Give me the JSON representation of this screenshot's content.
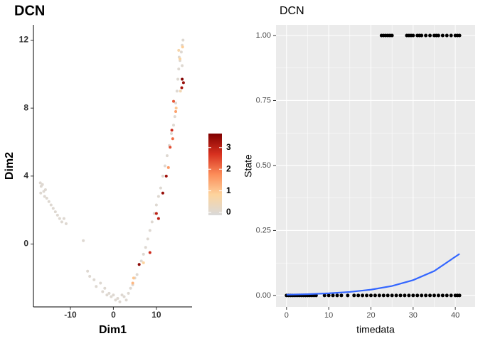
{
  "chart_data": [
    {
      "type": "scatter",
      "theme": "classic",
      "title": "DCN",
      "xlabel": "Dim1",
      "ylabel": "Dim2",
      "xlim": [
        -18.6,
        18.3
      ],
      "ylim": [
        -3.7,
        12.9
      ],
      "xticks": [
        -10,
        0,
        10
      ],
      "yticks": [
        0,
        4,
        8,
        12
      ],
      "colormap": [
        "#d9d9d9",
        "#fdd49e",
        "#fc8d59",
        "#d7301f",
        "#7f0000"
      ],
      "colorlim": [
        -0.13,
        3.65
      ],
      "colorticks": [
        0,
        1,
        2,
        3
      ],
      "points": {
        "x": [
          -17,
          -16.8,
          -16.5,
          -16.9,
          -16.2,
          -16,
          -15.5,
          -15.8,
          -15,
          -14.5,
          -14,
          -13.5,
          -13,
          -12.5,
          -12,
          -11.5,
          -11,
          -7,
          -6,
          -5.5,
          -4.5,
          -4,
          -3,
          -2.5,
          -2,
          -1.5,
          -1,
          -0.5,
          0,
          0.5,
          1,
          1.5,
          2,
          2.5,
          3,
          3.5,
          4,
          4.5,
          5,
          5.5,
          6,
          6.5,
          7,
          7.5,
          8,
          8.5,
          9,
          9.5,
          10,
          10.5,
          11,
          11.5,
          12,
          12.5,
          13,
          13.5,
          14,
          14.3,
          14.5,
          14.8,
          15,
          15.2,
          15.5,
          15.8,
          16,
          16.2,
          15.3,
          16,
          4.5,
          6,
          10,
          14,
          14.5,
          13.6,
          13.2,
          12.8,
          12.3,
          13.8,
          14.6,
          16,
          16.3,
          15.9,
          15.5,
          15.2,
          16.1,
          15.6,
          11.5,
          10.5,
          8.5,
          7,
          4.7
        ],
        "y": [
          3.6,
          3.4,
          3.5,
          3.0,
          3.1,
          2.8,
          2.7,
          3.2,
          2.5,
          2.3,
          2.1,
          1.9,
          1.7,
          1.5,
          1.3,
          1.5,
          1.2,
          0.2,
          -1.6,
          -1.9,
          -2.1,
          -2.5,
          -2.3,
          -2.8,
          -2.6,
          -3.0,
          -2.9,
          -3.1,
          -3.0,
          -3.3,
          -3.2,
          -3.4,
          -3.0,
          -3.1,
          -3.3,
          -2.9,
          -2.6,
          -2.4,
          -2.0,
          -1.8,
          -1.2,
          -1.0,
          -0.6,
          -0.2,
          0.3,
          0.8,
          1.3,
          1.8,
          2.3,
          2.8,
          3.3,
          4.0,
          4.6,
          5.2,
          5.8,
          6.5,
          7.0,
          7.5,
          8.3,
          9.0,
          9.7,
          10.3,
          10.8,
          11.3,
          11.7,
          12.0,
          11.0,
          10.5,
          -2.3,
          -1.2,
          1.8,
          8.4,
          7.8,
          6.7,
          5.7,
          4.5,
          4.0,
          6.2,
          8.0,
          9.7,
          9.5,
          9.2,
          10.9,
          11.4,
          11.6,
          9.0,
          3.0,
          1.5,
          -0.5,
          -1.1,
          -2.0
        ],
        "values": [
          0,
          0,
          0,
          0,
          0,
          0,
          0,
          0,
          0,
          0,
          0,
          0,
          0,
          0,
          0,
          0,
          0,
          0,
          0,
          0,
          0,
          0,
          0,
          0,
          0,
          0,
          0,
          0,
          0,
          0,
          0,
          0,
          0,
          0,
          0,
          0,
          0,
          0,
          0,
          0,
          0,
          0,
          0,
          0,
          0,
          0,
          0,
          0,
          0,
          0,
          0,
          0,
          0,
          0,
          0,
          0,
          0,
          0,
          0,
          0,
          0,
          0,
          0,
          0,
          0,
          0,
          0,
          0,
          1.2,
          3.5,
          3,
          2.3,
          1.5,
          2.8,
          2.4,
          1.6,
          3.3,
          2.1,
          1,
          3.6,
          3.4,
          3.2,
          0.8,
          0.6,
          0.9,
          0.5,
          3.4,
          3,
          2.8,
          0.8,
          1
        ]
      }
    },
    {
      "type": "scatter",
      "theme": "gray",
      "title": "DCN",
      "xlabel": "timedata",
      "ylabel": "State",
      "xlim": [
        -2.5,
        44.7
      ],
      "ylim": [
        -0.044,
        1.041
      ],
      "xticks": [
        0,
        10,
        20,
        30,
        40
      ],
      "yticks": [
        {
          "value": 0,
          "label": "0.00"
        },
        {
          "value": 0.25,
          "label": "0.25"
        },
        {
          "value": 0.5,
          "label": "0.50"
        },
        {
          "value": 0.75,
          "label": "0.75"
        },
        {
          "value": 1,
          "label": "1.00"
        }
      ],
      "points": {
        "color": "#000000",
        "x": [
          0,
          0.5,
          1,
          1.5,
          2,
          2.5,
          3,
          3.5,
          4,
          4.5,
          5,
          5.5,
          6,
          6.5,
          7,
          9,
          10,
          11,
          12,
          13,
          14.5,
          16,
          17,
          18,
          19,
          20,
          21,
          22,
          23,
          24,
          25,
          26,
          27,
          28,
          29,
          30,
          31,
          32,
          33,
          34,
          35,
          36,
          37,
          38,
          39,
          40,
          40.5,
          41,
          22.5,
          23,
          23.5,
          24,
          24.5,
          25,
          28.5,
          29,
          29.5,
          30,
          31,
          31.5,
          32,
          33,
          34,
          35,
          35.5,
          36,
          37,
          38,
          39,
          40,
          40.5,
          41
        ],
        "values": [
          0,
          0,
          0,
          0,
          0,
          0,
          0,
          0,
          0,
          0,
          0,
          0,
          0,
          0,
          0,
          0,
          0,
          0,
          0,
          0,
          0,
          0,
          0,
          0,
          0,
          0,
          0,
          0,
          0,
          0,
          0,
          0,
          0,
          0,
          0,
          0,
          0,
          0,
          0,
          0,
          0,
          0,
          0,
          0,
          0,
          0,
          0,
          0,
          1,
          1,
          1,
          1,
          1,
          1,
          1,
          1,
          1,
          1,
          1,
          1,
          1,
          1,
          1,
          1,
          1,
          1,
          1,
          1,
          1,
          1,
          1,
          1
        ]
      },
      "fit": {
        "color": "#3366ff",
        "x": [
          0,
          5,
          10,
          15,
          20,
          25,
          30,
          35,
          41
        ],
        "values": [
          0.003,
          0.005,
          0.0083,
          0.0136,
          0.0223,
          0.0365,
          0.059,
          0.094,
          0.16
        ]
      }
    }
  ]
}
